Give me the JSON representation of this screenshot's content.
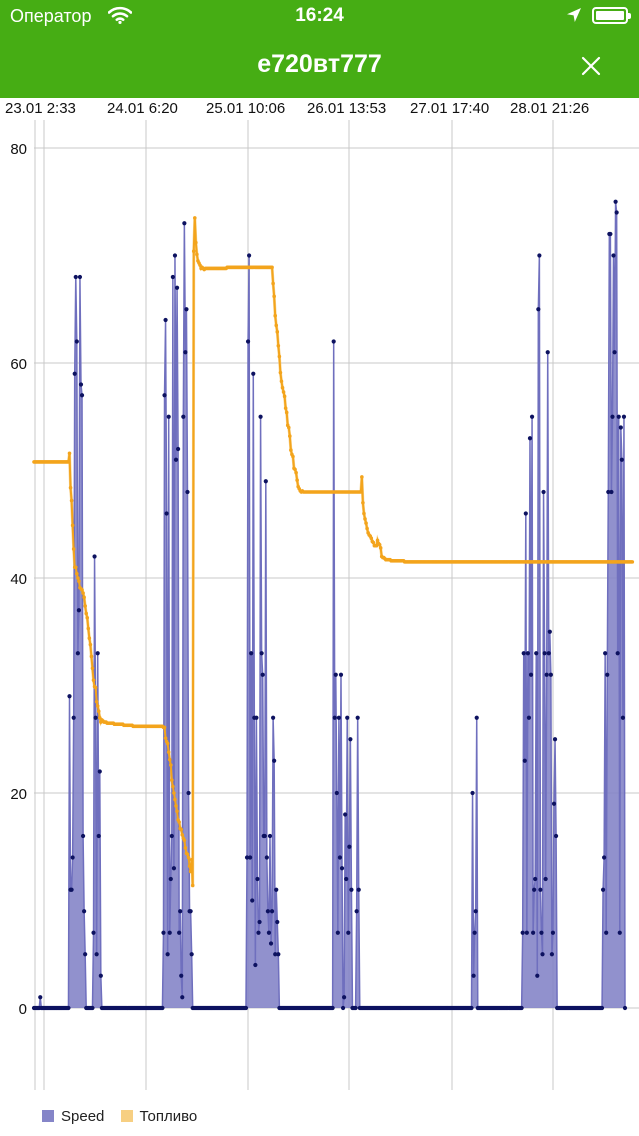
{
  "status_bar": {
    "carrier": "Оператор",
    "time": "16:24",
    "icons": [
      "wifi-icon",
      "location-arrow-icon",
      "battery-icon"
    ]
  },
  "nav": {
    "title": "е720вт777",
    "close_icon": "close-icon"
  },
  "colors": {
    "header": "#46ad14",
    "speed": "#8585c8",
    "speed_point": "#0d1260",
    "fuel": "#f7cf82",
    "fuel_point": "#f3a41c"
  },
  "chart_data": {
    "type": "line",
    "x_tick_labels": [
      "23.01 2:33",
      "24.01 6:20",
      "25.01 10:06",
      "26.01 13:53",
      "27.01 17:40",
      "28.01 21:26"
    ],
    "ylim": [
      -10,
      82
    ],
    "y_ticks": [
      0,
      20,
      40,
      60,
      80
    ],
    "grid": true,
    "legend_position": "bottom-left",
    "series": [
      {
        "name": "Speed",
        "style": "filled-area-with-points",
        "values": [
          0,
          0,
          0,
          0,
          0,
          0,
          1,
          0,
          0,
          0,
          0,
          0,
          0,
          0,
          0,
          0,
          0,
          0,
          0,
          0,
          0,
          0,
          0,
          0,
          0,
          0,
          0,
          0,
          0,
          0,
          0,
          0,
          0,
          0,
          29,
          11,
          11,
          14,
          27,
          59,
          68,
          62,
          33,
          37,
          68,
          58,
          57,
          16,
          9,
          5,
          0,
          0,
          0,
          0,
          0,
          0,
          0,
          7,
          42,
          27,
          5,
          33,
          16,
          22,
          3,
          0,
          0,
          0,
          0,
          0,
          0,
          0,
          0,
          0,
          0,
          0,
          0,
          0,
          0,
          0,
          0,
          0,
          0,
          0,
          0,
          0,
          0,
          0,
          0,
          0,
          0,
          0,
          0,
          0,
          0,
          0,
          0,
          0,
          0,
          0,
          0,
          0,
          0,
          0,
          0,
          0,
          0,
          0,
          0,
          0,
          0,
          0,
          0,
          0,
          0,
          0,
          0,
          0,
          0,
          0,
          0,
          0,
          0,
          0,
          7,
          57,
          64,
          46,
          5,
          55,
          7,
          12,
          16,
          68,
          13,
          70,
          51,
          67,
          52,
          7,
          9,
          3,
          1,
          55,
          73,
          61,
          65,
          48,
          20,
          9,
          9,
          5,
          0,
          0,
          0,
          0,
          0,
          0,
          0,
          0,
          0,
          0,
          0,
          0,
          0,
          0,
          0,
          0,
          0,
          0,
          0,
          0,
          0,
          0,
          0,
          0,
          0,
          0,
          0,
          0,
          0,
          0,
          0,
          0,
          0,
          0,
          0,
          0,
          0,
          0,
          0,
          0,
          0,
          0,
          0,
          0,
          0,
          0,
          0,
          0,
          0,
          0,
          0,
          0,
          14,
          62,
          70,
          14,
          33,
          10,
          59,
          27,
          4,
          27,
          12,
          7,
          8,
          55,
          33,
          31,
          16,
          16,
          49,
          14,
          9,
          7,
          16,
          6,
          9,
          27,
          23,
          5,
          11,
          8,
          5,
          0,
          0,
          0,
          0,
          0,
          0,
          0,
          0,
          0,
          0,
          0,
          0,
          0,
          0,
          0,
          0,
          0,
          0,
          0,
          0,
          0,
          0,
          0,
          0,
          0,
          0,
          0,
          0,
          0,
          0,
          0,
          0,
          0,
          0,
          0,
          0,
          0,
          0,
          0,
          0,
          0,
          0,
          0,
          0,
          0,
          0,
          0,
          0,
          0,
          0,
          0,
          0,
          62,
          27,
          31,
          20,
          7,
          27,
          14,
          31,
          13,
          0,
          1,
          18,
          12,
          27,
          7,
          15,
          25,
          11,
          0,
          0,
          0,
          0,
          9,
          27,
          11,
          0,
          0,
          0,
          0,
          0,
          0,
          0,
          0,
          0,
          0,
          0,
          0,
          0,
          0,
          0,
          0,
          0,
          0,
          0,
          0,
          0,
          0,
          0,
          0,
          0,
          0,
          0,
          0,
          0,
          0,
          0,
          0,
          0,
          0,
          0,
          0,
          0,
          0,
          0,
          0,
          0,
          0,
          0,
          0,
          0,
          0,
          0,
          0,
          0,
          0,
          0,
          0,
          0,
          0,
          0,
          0,
          0,
          0,
          0,
          0,
          0,
          0,
          0,
          0,
          0,
          0,
          0,
          0,
          0,
          0,
          0,
          0,
          0,
          0,
          0,
          0,
          0,
          0,
          0,
          0,
          0,
          0,
          0,
          0,
          0,
          0,
          0,
          0,
          0,
          0,
          0,
          0,
          0,
          0,
          0,
          0,
          0,
          0,
          0,
          0,
          0,
          0,
          0,
          0,
          0,
          0,
          0,
          0,
          20,
          3,
          7,
          9,
          27,
          0,
          0,
          0,
          0,
          0,
          0,
          0,
          0,
          0,
          0,
          0,
          0,
          0,
          0,
          0,
          0,
          0,
          0,
          0,
          0,
          0,
          0,
          0,
          0,
          0,
          0,
          0,
          0,
          0,
          0,
          0,
          0,
          0,
          0,
          0,
          0,
          0,
          0,
          0,
          0,
          0,
          0,
          0,
          7,
          33,
          23,
          46,
          7,
          33,
          27,
          53,
          31,
          55,
          7,
          11,
          12,
          33,
          3,
          65,
          70,
          11,
          7,
          5,
          48,
          33,
          12,
          31,
          61,
          33,
          35,
          31,
          5,
          7,
          19,
          25,
          16,
          0,
          0,
          0,
          0,
          0,
          0,
          0,
          0,
          0,
          0,
          0,
          0,
          0,
          0,
          0,
          0,
          0,
          0,
          0,
          0,
          0,
          0,
          0,
          0,
          0,
          0,
          0,
          0,
          0,
          0,
          0,
          0,
          0,
          0,
          0,
          0,
          0,
          0,
          0,
          0,
          0,
          0,
          0,
          0,
          11,
          14,
          33,
          7,
          31,
          48,
          72,
          72,
          48,
          55,
          70,
          61,
          75,
          74,
          33,
          55,
          7,
          54,
          51,
          27,
          55,
          0
        ]
      },
      {
        "name": "Топливо",
        "style": "filled-area-with-points",
        "values": [
          50.8,
          50.8,
          50.8,
          50.8,
          50.8,
          50.8,
          50.8,
          50.8,
          50.8,
          50.8,
          50.8,
          50.8,
          50.8,
          50.8,
          50.8,
          50.8,
          50.8,
          50.8,
          50.8,
          50.8,
          50.8,
          50.8,
          50.8,
          50.8,
          50.8,
          50.8,
          50.8,
          50.8,
          50.8,
          50.8,
          50.8,
          50.8,
          50.8,
          50.8,
          51.6,
          48.4,
          47.2,
          44.9,
          42.7,
          41.0,
          41.0,
          40.4,
          40.0,
          39.7,
          39.1,
          39.0,
          38.9,
          38.6,
          38.2,
          37.4,
          36.7,
          36.3,
          35.3,
          34.4,
          33.8,
          32.7,
          31.6,
          30.5,
          29.9,
          29.8,
          28.5,
          28.1,
          27.6,
          27.0,
          26.6,
          26.8,
          26.7,
          26.6,
          26.6,
          26.6,
          26.5,
          26.5,
          26.5,
          26.5,
          26.5,
          26.5,
          26.5,
          26.4,
          26.4,
          26.4,
          26.4,
          26.4,
          26.4,
          26.4,
          26.4,
          26.4,
          26.3,
          26.3,
          26.3,
          26.3,
          26.3,
          26.3,
          26.3,
          26.3,
          26.3,
          26.2,
          26.2,
          26.2,
          26.2,
          26.2,
          26.2,
          26.2,
          26.2,
          26.2,
          26.2,
          26.2,
          26.2,
          26.2,
          26.2,
          26.2,
          26.2,
          26.2,
          26.2,
          26.2,
          26.2,
          26.2,
          26.2,
          26.2,
          26.2,
          26.2,
          26.2,
          26.2,
          26.2,
          26.2,
          26.1,
          26.1,
          25.1,
          24.8,
          24.6,
          23.8,
          23.1,
          22.6,
          21.2,
          20.6,
          20.0,
          19.4,
          18.8,
          18.3,
          17.5,
          17.3,
          16.7,
          16.6,
          16.1,
          15.8,
          15.6,
          14.9,
          14.4,
          14.3,
          14.0,
          13.2,
          12.7,
          13.8,
          11.4,
          70.4,
          73.5,
          71.2,
          70.1,
          69.5,
          69.3,
          69.1,
          68.8,
          68.9,
          68.8,
          68.7,
          68.8,
          68.8,
          68.8,
          68.8,
          68.8,
          68.8,
          68.8,
          68.8,
          68.8,
          68.8,
          68.8,
          68.8,
          68.8,
          68.8,
          68.8,
          68.8,
          68.8,
          68.8,
          68.8,
          68.8,
          68.8,
          68.9,
          68.9,
          68.9,
          68.9,
          68.9,
          68.9,
          68.9,
          68.9,
          68.9,
          68.9,
          68.9,
          68.9,
          68.9,
          68.9,
          68.9,
          68.9,
          68.9,
          68.9,
          68.9,
          68.9,
          68.9,
          68.9,
          68.9,
          68.9,
          68.9,
          68.9,
          68.9,
          68.9,
          68.9,
          68.9,
          68.9,
          68.9,
          68.9,
          68.9,
          68.9,
          68.9,
          68.9,
          68.9,
          68.9,
          68.9,
          68.9,
          68.9,
          68.9,
          68.9,
          67.4,
          66.2,
          64.4,
          63.5,
          62.9,
          61.6,
          60.6,
          59.1,
          58.3,
          57.7,
          57.3,
          56.9,
          55.8,
          55.4,
          54.2,
          54.0,
          53.2,
          51.9,
          51.5,
          51.3,
          50.2,
          50.1,
          49.8,
          49.1,
          48.5,
          48.3,
          48.1,
          48.0,
          48.1,
          48.0,
          48.0,
          48.0,
          48.0,
          48.0,
          48.0,
          48.0,
          48.0,
          48.0,
          48.0,
          48.0,
          48.0,
          48.0,
          48.0,
          48.0,
          48.0,
          48.0,
          48.0,
          48.0,
          48.0,
          48.0,
          48.0,
          48.0,
          48.0,
          48.0,
          48.0,
          48.0,
          48.0,
          48.0,
          48.0,
          48.0,
          48.0,
          48.0,
          48.0,
          48.0,
          48.0,
          48.0,
          48.0,
          48.0,
          48.0,
          48.0,
          48.0,
          48.0,
          48.0,
          48.0,
          48.0,
          48.0,
          48.0,
          48.0,
          48.0,
          48.0,
          48.0,
          48.0,
          48.0,
          48.0,
          48.0,
          49.4,
          47.0,
          46.0,
          45.5,
          45.1,
          44.6,
          44.2,
          44.0,
          43.9,
          43.7,
          43.4,
          43.3,
          43.0,
          43.0,
          43.0,
          43.5,
          43.2,
          43.1,
          42.8,
          42.0,
          41.9,
          41.9,
          41.8,
          41.7,
          41.7,
          41.7,
          41.7,
          41.7,
          41.6,
          41.6,
          41.6,
          41.6,
          41.6,
          41.6,
          41.6,
          41.6,
          41.6,
          41.6,
          41.6,
          41.6,
          41.6,
          41.5,
          41.5,
          41.5,
          41.5,
          41.5,
          41.5,
          41.5,
          41.5,
          41.5,
          41.5,
          41.5,
          41.5,
          41.5,
          41.5,
          41.5,
          41.5,
          41.5,
          41.5,
          41.5,
          41.5,
          41.5,
          41.5,
          41.5,
          41.5,
          41.5,
          41.5,
          41.5,
          41.5,
          41.5,
          41.5,
          41.5,
          41.5,
          41.5,
          41.5,
          41.5,
          41.5,
          41.5,
          41.5,
          41.5,
          41.5,
          41.5,
          41.5,
          41.5,
          41.5,
          41.5,
          41.5,
          41.5,
          41.5,
          41.5,
          41.5,
          41.5,
          41.5,
          41.5,
          41.5,
          41.5,
          41.5,
          41.5,
          41.5,
          41.5,
          41.5,
          41.5,
          41.5,
          41.5,
          41.5,
          41.5,
          41.5,
          41.5,
          41.5,
          41.5,
          41.5,
          41.5,
          41.5,
          41.5,
          41.5,
          41.5,
          41.5,
          41.5,
          41.5,
          41.5,
          41.5,
          41.5,
          41.5,
          41.5,
          41.5,
          41.5,
          41.5,
          41.5,
          41.5,
          41.5,
          41.5,
          41.5,
          41.5,
          41.5,
          41.5,
          41.5,
          41.5,
          41.5,
          41.5,
          41.5,
          41.5,
          41.5,
          41.5,
          41.5,
          41.5,
          41.5,
          41.5,
          41.5,
          41.5,
          41.5,
          41.5,
          41.5,
          41.5,
          41.5,
          41.5,
          41.5,
          41.5,
          41.5,
          41.5,
          41.5,
          41.5,
          41.5,
          41.5,
          41.5,
          41.5,
          41.5,
          41.5,
          41.5,
          41.5,
          41.5,
          41.5,
          41.5,
          41.5,
          41.5,
          41.5,
          41.5,
          41.5,
          41.5,
          41.5,
          41.5,
          41.5,
          41.5,
          41.5,
          41.5,
          41.5,
          41.5,
          41.5,
          41.5,
          41.5,
          41.5,
          41.5,
          41.5,
          41.5,
          41.5,
          41.5,
          41.5,
          41.5,
          41.5,
          41.5,
          41.5,
          41.5,
          41.5,
          41.5,
          41.5,
          41.5,
          41.5,
          41.5,
          41.5,
          41.5,
          41.5,
          41.5,
          41.5,
          41.5,
          41.5,
          41.5,
          41.5,
          41.5,
          41.5,
          41.5,
          41.5,
          41.5,
          41.5,
          41.5,
          41.5,
          41.5,
          41.5,
          41.5,
          41.5,
          41.5,
          41.5,
          41.5,
          41.5,
          41.5,
          41.5,
          41.5,
          41.5,
          41.5,
          41.5,
          41.5,
          41.5,
          41.5,
          41.5,
          41.5,
          41.5,
          41.5,
          41.5,
          41.5,
          41.5,
          41.5,
          41.5,
          41.5,
          41.5,
          41.5,
          41.5,
          41.5,
          41.5,
          41.5,
          41.5,
          41.5,
          41.5
        ]
      }
    ]
  },
  "legend": [
    {
      "label": "Speed",
      "color": "#8585c8"
    },
    {
      "label": "Топливо",
      "color": "#f7cf82"
    }
  ]
}
